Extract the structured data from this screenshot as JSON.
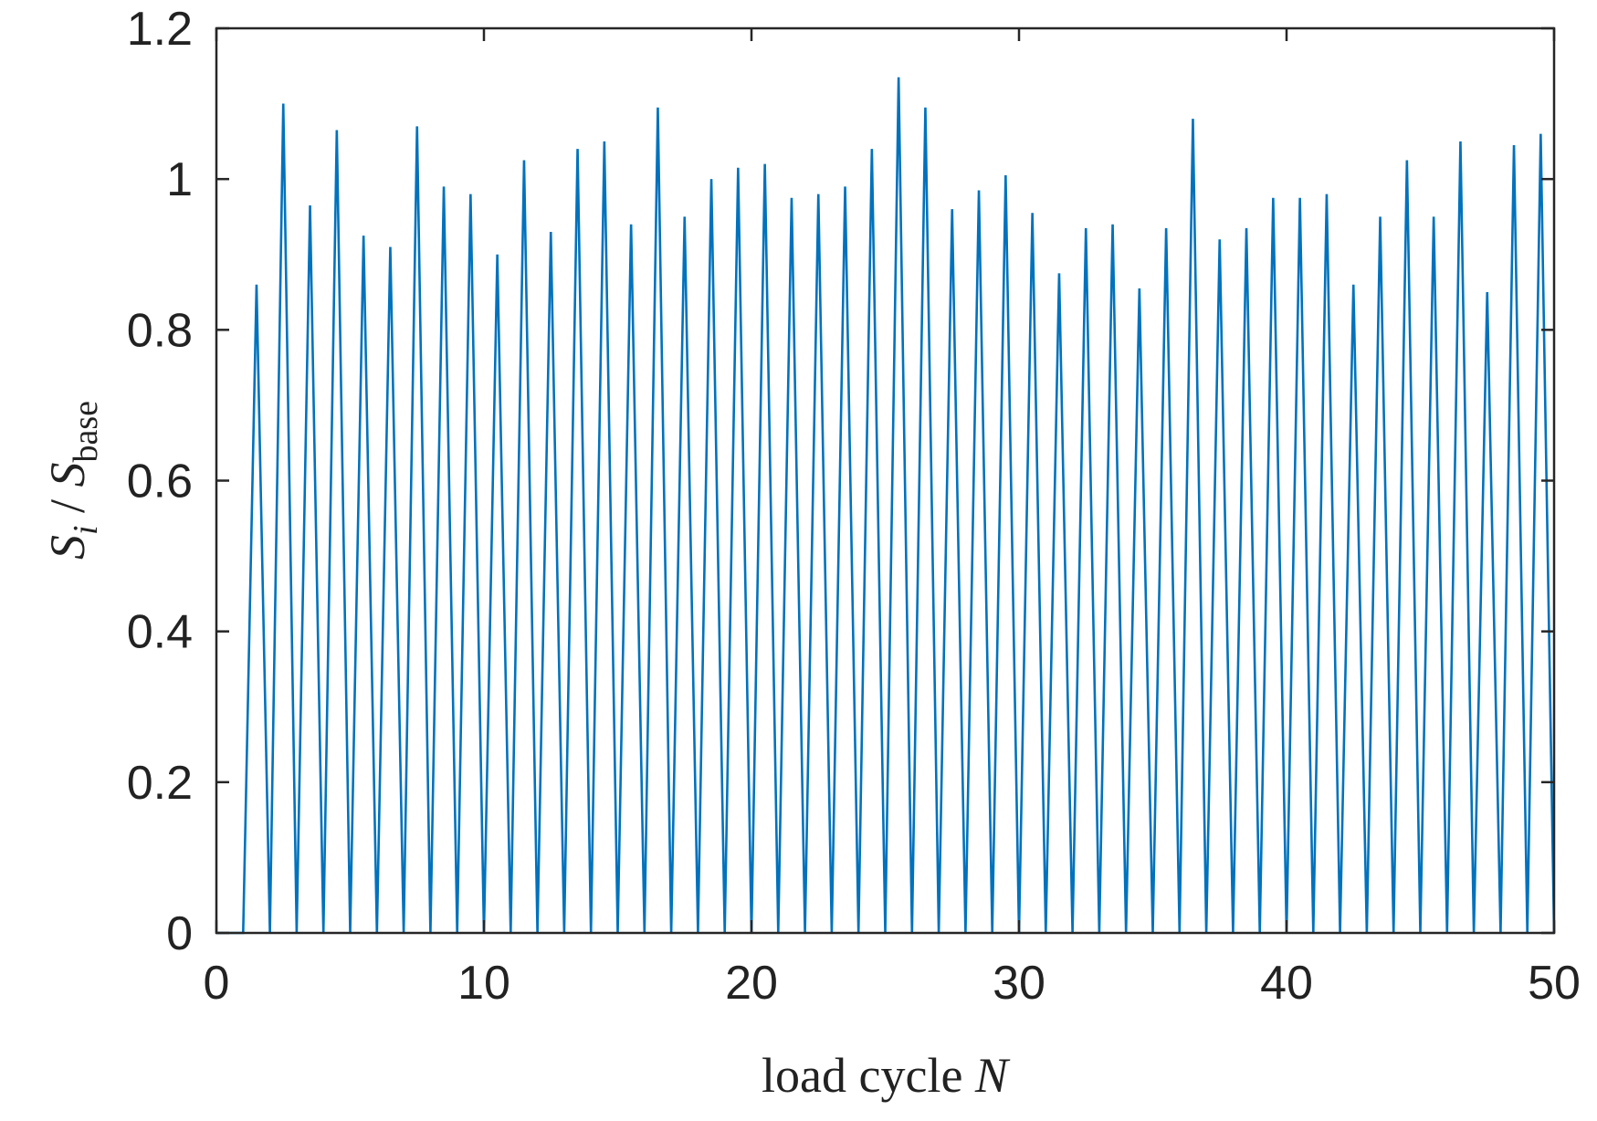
{
  "chart_data": {
    "type": "line",
    "xlabel": {
      "text": "load cycle ",
      "var": "N"
    },
    "ylabel": {
      "s": "S",
      "i": "i",
      "slash": " / ",
      "s2": "S",
      "base": "base"
    },
    "xlim": [
      0,
      50
    ],
    "ylim": [
      0,
      1.2
    ],
    "xticks": [
      0,
      10,
      20,
      30,
      40,
      50
    ],
    "xtick_labels": [
      "0",
      "10",
      "20",
      "30",
      "40",
      "50"
    ],
    "yticks": [
      0,
      0.2,
      0.4,
      0.6,
      0.8,
      1.0,
      1.2
    ],
    "ytick_labels": [
      "0",
      "0.2",
      "0.4",
      "0.6",
      "0.8",
      "1",
      "1.2"
    ],
    "grid": false,
    "color": "#0072BD",
    "peaks": [
      0.86,
      1.1,
      0.965,
      1.065,
      0.925,
      0.91,
      1.07,
      0.99,
      0.98,
      0.9,
      1.025,
      0.93,
      1.04,
      1.05,
      0.94,
      1.095,
      0.95,
      1.0,
      1.015,
      1.02,
      0.975,
      0.98,
      0.99,
      1.04,
      1.135,
      1.095,
      0.96,
      0.985,
      1.005,
      0.955,
      0.875,
      0.935,
      0.94,
      0.855,
      0.935,
      1.08,
      0.92,
      0.935,
      0.975,
      0.975,
      0.98,
      0.86,
      0.95,
      1.025,
      0.95,
      1.05,
      0.85,
      1.045,
      1.06
    ],
    "series": [
      {
        "x": [
          0,
          1,
          1.5,
          2,
          2.5,
          3,
          3.5,
          4,
          4.5,
          5,
          5.5,
          6,
          6.5,
          7,
          7.5,
          8,
          8.5,
          9,
          9.5,
          10,
          10.5,
          11,
          11.5,
          12,
          12.5,
          13,
          13.5,
          14,
          14.5,
          15,
          15.5,
          16,
          16.5,
          17,
          17.5,
          18,
          18.5,
          19,
          19.5,
          20,
          20.5,
          21,
          21.5,
          22,
          22.5,
          23,
          23.5,
          24,
          24.5,
          25,
          25.5,
          26,
          26.5,
          27,
          27.5,
          28,
          28.5,
          29,
          29.5,
          30,
          30.5,
          31,
          31.5,
          32,
          32.5,
          33,
          33.5,
          34,
          34.5,
          35,
          35.5,
          36,
          36.5,
          37,
          37.5,
          38,
          38.5,
          39,
          39.5,
          40,
          40.5,
          41,
          41.5,
          42,
          42.5,
          43,
          43.5,
          44,
          44.5,
          45,
          45.5,
          46,
          46.5,
          47,
          47.5,
          48,
          48.5,
          49,
          49.5,
          50
        ],
        "y": [
          0,
          0,
          0.86,
          0,
          1.1,
          0,
          0.965,
          0,
          1.065,
          0,
          0.925,
          0,
          0.91,
          0,
          1.07,
          0,
          0.99,
          0,
          0.98,
          0,
          0.9,
          0,
          1.025,
          0,
          0.93,
          0,
          1.04,
          0,
          1.05,
          0,
          0.94,
          0,
          1.095,
          0,
          0.95,
          0,
          1.0,
          0,
          1.015,
          0,
          1.02,
          0,
          0.975,
          0,
          0.98,
          0,
          0.99,
          0,
          1.04,
          0,
          1.135,
          0,
          1.095,
          0,
          0.96,
          0,
          0.985,
          0,
          1.005,
          0,
          0.955,
          0,
          0.875,
          0,
          0.935,
          0,
          0.94,
          0,
          0.855,
          0,
          0.935,
          0,
          1.08,
          0,
          0.92,
          0,
          0.935,
          0,
          0.975,
          0,
          0.975,
          0,
          0.98,
          0,
          0.86,
          0,
          0.95,
          0,
          1.025,
          0,
          0.95,
          0,
          1.05,
          0,
          0.85,
          0,
          1.045,
          0,
          1.06,
          0
        ]
      }
    ]
  }
}
